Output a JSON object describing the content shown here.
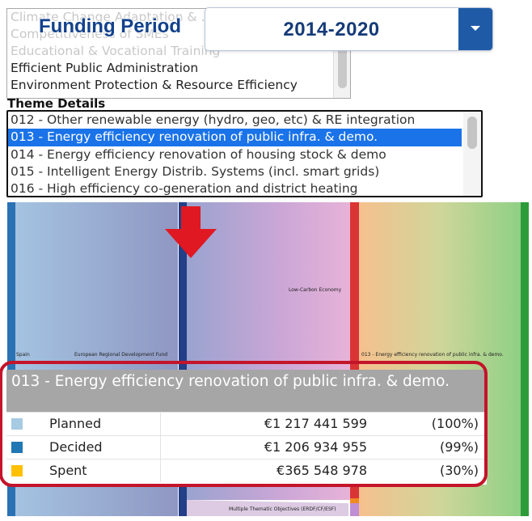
{
  "funding_period": {
    "label": "Funding Period",
    "value": "2014-2020"
  },
  "theme_list": {
    "options": [
      "Climate Change Adaptation & ...",
      "Competitiveness of SMEs",
      "Educational & Vocational Training",
      "Efficient Public Administration",
      "Environment Protection & Resource Efficiency"
    ]
  },
  "theme_details": {
    "title": "Theme Details",
    "options": [
      "012 - Other renewable energy (hydro, geo, etc) & RE integration",
      "013 - Energy efficiency renovation of public infra. & demo.",
      "014 - Energy efficiency renovation of housing stock & demo",
      "015 - Intelligent Energy Distrib. Systems (incl. smart grids)",
      "016 - High efficiency co-generation and district heating"
    ],
    "selected": "013 - Energy efficiency renovation of public infra. & demo."
  },
  "sankey": {
    "nodes": {
      "spain": "Spain",
      "fund": "European Regional Development Fund",
      "objective": "Low-Carbon Economy",
      "theme": "013 - Energy efficiency renovation of public infra. & demo.",
      "multi": "Multiple Thematic Objectives (ERDF/CF/ESF)"
    },
    "colors": {
      "spain": "#2a72b3",
      "fund": "#233f87",
      "objective": "#d93535",
      "theme": "#2e9b3a",
      "small": "#f08a24"
    }
  },
  "tooltip": {
    "title": "013 - Energy efficiency renovation of public infra. & demo.",
    "rows": [
      {
        "name": "Planned",
        "amount": "€1 217 441 599",
        "pct": "(100%)",
        "color": "#a6cbe3"
      },
      {
        "name": "Decided",
        "amount": "€1 206 934 955",
        "pct": "(99%)",
        "color": "#1f77b4"
      },
      {
        "name": "Spent",
        "amount": "€365 548 978",
        "pct": "(30%)",
        "color": "#ffc000"
      }
    ]
  }
}
